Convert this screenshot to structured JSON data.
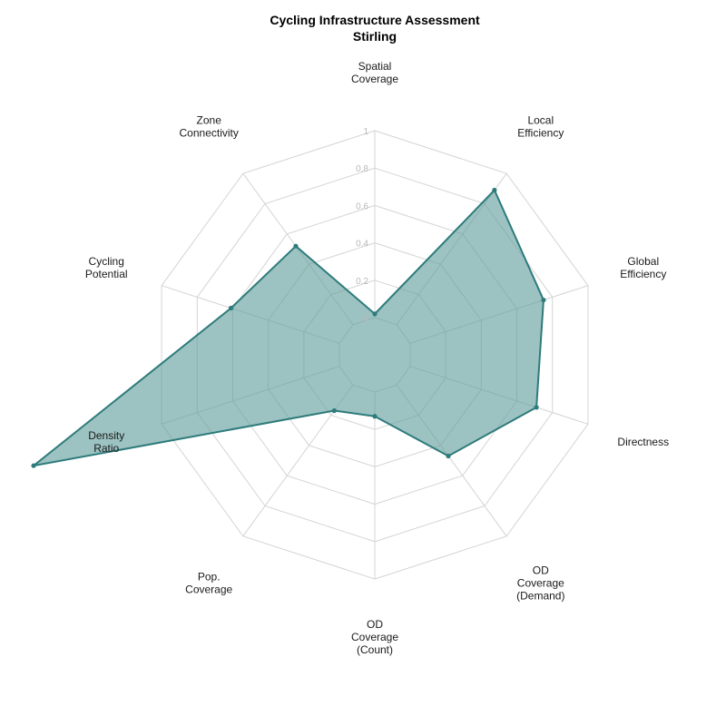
{
  "chart_data": {
    "type": "radar",
    "title": "Cycling Infrastructure Assessment",
    "subtitle": "Stirling",
    "axes": [
      [
        "Spatial",
        "Coverage"
      ],
      [
        "Local",
        "Efficiency"
      ],
      [
        "Global",
        "Efficiency"
      ],
      [
        "Directness"
      ],
      [
        "OD",
        "Coverage",
        "(Demand)"
      ],
      [
        "OD",
        "Coverage",
        "(Count)"
      ],
      [
        "Pop.",
        "Coverage"
      ],
      [
        "Density",
        "Ratio"
      ],
      [
        "Cycling",
        "Potential"
      ],
      [
        "Zone",
        "Connectivity"
      ]
    ],
    "values": [
      0.02,
      0.89,
      0.75,
      0.71,
      0.47,
      0.13,
      0.17,
      1.72,
      0.61,
      0.52
    ],
    "rlim": [
      0,
      1
    ],
    "ticks": [
      "0",
      "0.2",
      "0.4",
      "0.6",
      "0.8",
      "1"
    ],
    "tick_values": [
      0,
      0.2,
      0.4,
      0.6,
      0.8,
      1
    ],
    "grid": true,
    "colors": {
      "fill": "#5f9c9c",
      "line": "#2e7b7b",
      "grid": "#d4d4d4",
      "tick": "#b8b8b8"
    }
  }
}
